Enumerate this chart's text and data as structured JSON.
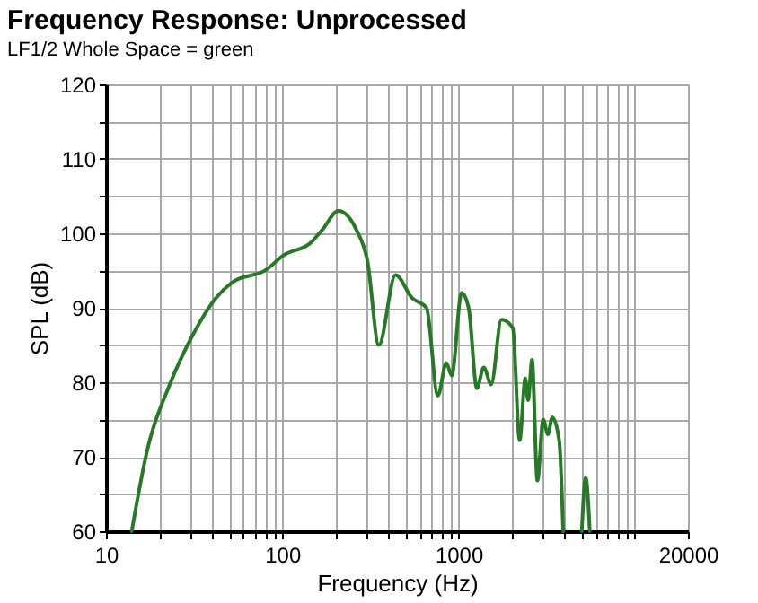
{
  "chart_data": {
    "type": "line",
    "title": "Frequency  Response: Unprocessed",
    "subtitle": "LF1/2 Whole Space = green",
    "xlabel": "Frequency (Hz)",
    "ylabel": "SPL (dB)",
    "log": "x",
    "grid": true,
    "legend": false,
    "marker": "none",
    "line_style": "solid",
    "xlim": [
      10,
      20000
    ],
    "ylim": [
      60,
      120
    ],
    "xticks": [
      10,
      {
        "value": 20,
        "label": null
      },
      {
        "value": 30,
        "label": null
      },
      {
        "value": 40,
        "label": null
      },
      {
        "value": 50,
        "label": null
      },
      {
        "value": 60,
        "label": null
      },
      {
        "value": 70,
        "label": null
      },
      {
        "value": 80,
        "label": null
      },
      {
        "value": 90,
        "label": null
      },
      100,
      {
        "value": 200,
        "label": null
      },
      {
        "value": 300,
        "label": null
      },
      {
        "value": 400,
        "label": null
      },
      {
        "value": 500,
        "label": null
      },
      {
        "value": 600,
        "label": null
      },
      {
        "value": 700,
        "label": null
      },
      {
        "value": 800,
        "label": null
      },
      {
        "value": 900,
        "label": null
      },
      1000,
      {
        "value": 2000,
        "label": null
      },
      {
        "value": 3000,
        "label": null
      },
      {
        "value": 4000,
        "label": null
      },
      {
        "value": 5000,
        "label": null
      },
      {
        "value": 6000,
        "label": null
      },
      {
        "value": 7000,
        "label": null
      },
      {
        "value": 8000,
        "label": null
      },
      {
        "value": 9000,
        "label": null
      },
      {
        "value": 10000,
        "label": null
      },
      20000
    ],
    "yticks": [
      60,
      {
        "value": 65,
        "label": null
      },
      70,
      {
        "value": 75,
        "label": null
      },
      80,
      {
        "value": 85,
        "label": null
      },
      90,
      {
        "value": 95,
        "label": null
      },
      100,
      {
        "value": 105,
        "label": null
      },
      110,
      {
        "value": 115,
        "label": null
      },
      120
    ],
    "x": [
      14,
      17,
      23,
      31,
      42,
      52,
      81,
      101,
      146,
      169,
      208,
      263,
      304,
      353,
      439,
      545,
      658,
      763,
      852,
      914,
      1040,
      1140,
      1270,
      1390,
      1530,
      1750,
      2030,
      2220,
      2390,
      2480,
      2610,
      2800,
      3020,
      3210,
      3400,
      3720,
      3920,
      4500,
      5000,
      5260,
      5550
    ],
    "series": [
      {
        "color": "#267a26",
        "values": [
          60,
          70.5,
          79.7,
          86.3,
          91.3,
          93.4,
          95.1,
          97,
          98.8,
          100.5,
          103,
          100.5,
          96.3,
          85,
          94.4,
          91.3,
          90,
          78.2,
          82.6,
          80.9,
          92,
          90,
          79.2,
          82,
          79.7,
          88.4,
          87.3,
          72.2,
          80.5,
          77.6,
          83,
          66.8,
          75,
          73,
          75.3,
          72.2,
          60,
          null,
          60,
          67.2,
          60
        ]
      }
    ]
  }
}
